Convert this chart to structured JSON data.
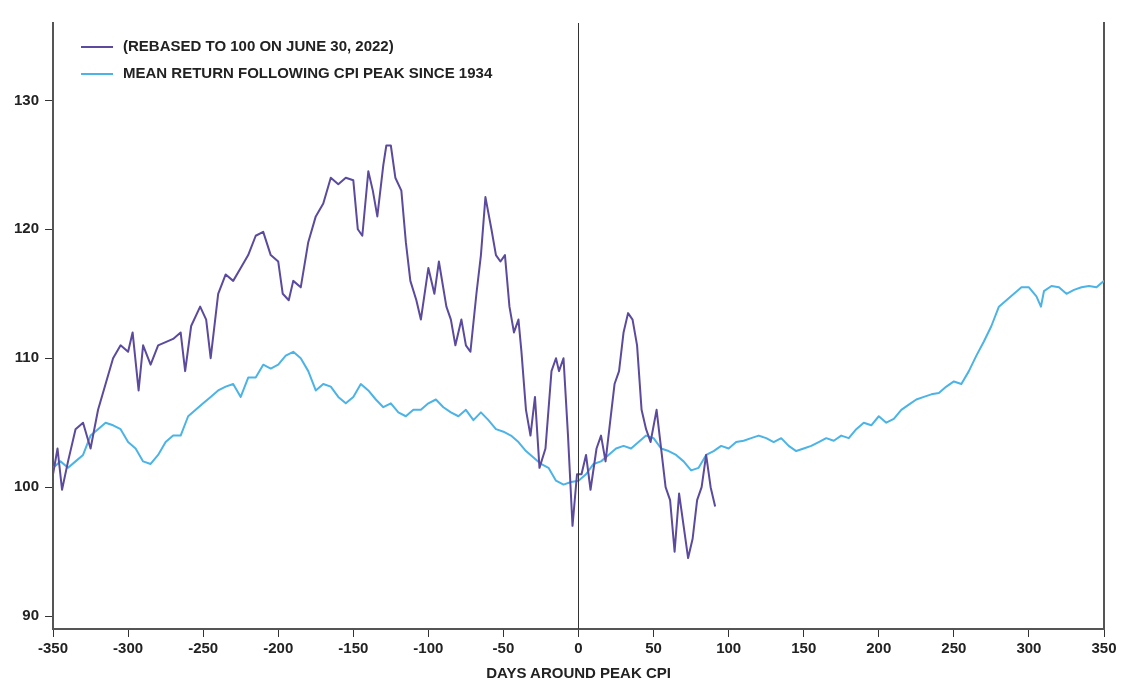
{
  "chart_data": {
    "type": "line",
    "xlabel": "DAYS AROUND PEAK CPI",
    "xlim": [
      -350,
      350
    ],
    "xticks": [
      -350,
      -300,
      -250,
      -200,
      -150,
      -100,
      -50,
      0,
      50,
      100,
      150,
      200,
      250,
      300,
      350
    ],
    "ylim": [
      89,
      136
    ],
    "yticks": [
      90,
      100,
      110,
      120,
      130
    ],
    "grid": false,
    "legend": "top left",
    "marker": "none",
    "line_style": "solid",
    "ref_lines": [
      {
        "axis": "x",
        "value": 0,
        "color": "#333333"
      }
    ],
    "series": [
      {
        "name": "(REBASED TO 100 ON JUNE 30, 2022)",
        "color": "#5b4a9e",
        "x": [
          -350,
          -347,
          -344,
          -340,
          -335,
          -330,
          -325,
          -320,
          -315,
          -310,
          -305,
          -300,
          -297,
          -293,
          -290,
          -285,
          -280,
          -270,
          -265,
          -262,
          -258,
          -252,
          -248,
          -245,
          -240,
          -235,
          -230,
          -225,
          -220,
          -215,
          -210,
          -205,
          -200,
          -197,
          -193,
          -190,
          -185,
          -180,
          -175,
          -170,
          -165,
          -160,
          -155,
          -150,
          -147,
          -144,
          -140,
          -137,
          -134,
          -130,
          -128,
          -125,
          -122,
          -118,
          -115,
          -112,
          -108,
          -105,
          -100,
          -96,
          -93,
          -88,
          -85,
          -82,
          -78,
          -75,
          -72,
          -68,
          -65,
          -62,
          -58,
          -55,
          -52,
          -49,
          -46,
          -43,
          -40,
          -38,
          -35,
          -32,
          -29,
          -26,
          -22,
          -18,
          -15,
          -13,
          -10,
          -7,
          -4,
          -1,
          2,
          5,
          8,
          12,
          15,
          18,
          21,
          24,
          27,
          30,
          33,
          36,
          39,
          42,
          45,
          48,
          52,
          55,
          58,
          61,
          64,
          67,
          70,
          73,
          76,
          79,
          82,
          85,
          88,
          91
        ],
        "values": [
          101,
          103,
          99.8,
          102,
          104.5,
          105,
          103,
          106,
          108,
          110,
          111,
          110.5,
          112,
          107.5,
          111,
          109.5,
          111,
          111.5,
          112,
          109,
          112.5,
          114,
          113,
          110,
          115,
          116.5,
          116,
          117,
          118,
          119.5,
          119.8,
          118,
          117.5,
          115,
          114.5,
          116,
          115.5,
          119,
          121,
          122,
          124,
          123.5,
          124,
          123.8,
          120,
          119.5,
          124.5,
          123,
          121,
          125,
          126.5,
          126.5,
          124,
          123,
          119,
          116,
          114.5,
          113,
          117,
          115,
          117.5,
          114,
          113,
          111,
          113,
          111,
          110.5,
          115,
          118,
          122.5,
          120,
          118,
          117.5,
          118,
          114,
          112,
          113,
          110.5,
          106,
          104,
          107,
          101.5,
          103,
          109,
          110,
          109,
          110,
          104,
          97,
          101,
          101,
          102.5,
          99.8,
          103,
          104,
          102,
          105,
          108,
          109,
          112,
          113.5,
          113,
          111,
          106,
          104.5,
          103.5,
          106,
          103,
          100,
          99,
          95,
          99.5,
          97,
          94.5,
          96,
          99,
          100,
          102.5,
          100,
          98.5
        ]
      },
      {
        "name": "MEAN RETURN FOLLOWING CPI PEAK SINCE 1934",
        "color": "#4bb3e6",
        "x": [
          -350,
          -345,
          -340,
          -335,
          -330,
          -325,
          -320,
          -315,
          -310,
          -305,
          -300,
          -295,
          -290,
          -285,
          -280,
          -275,
          -270,
          -265,
          -260,
          -255,
          -250,
          -245,
          -240,
          -235,
          -230,
          -225,
          -220,
          -215,
          -210,
          -205,
          -200,
          -195,
          -190,
          -185,
          -180,
          -175,
          -170,
          -165,
          -160,
          -155,
          -150,
          -145,
          -140,
          -135,
          -130,
          -125,
          -120,
          -115,
          -110,
          -105,
          -100,
          -95,
          -90,
          -85,
          -80,
          -75,
          -70,
          -65,
          -60,
          -55,
          -50,
          -45,
          -40,
          -35,
          -30,
          -25,
          -20,
          -15,
          -10,
          -5,
          0,
          5,
          10,
          15,
          20,
          25,
          30,
          35,
          40,
          45,
          50,
          55,
          60,
          65,
          70,
          75,
          80,
          85,
          90,
          95,
          100,
          105,
          110,
          115,
          120,
          125,
          130,
          135,
          140,
          145,
          150,
          155,
          160,
          165,
          170,
          175,
          180,
          185,
          190,
          195,
          200,
          205,
          210,
          215,
          220,
          225,
          230,
          235,
          240,
          245,
          250,
          255,
          260,
          265,
          270,
          275,
          280,
          285,
          290,
          295,
          300,
          305,
          308,
          310,
          315,
          320,
          325,
          330,
          335,
          340,
          345,
          350
        ],
        "values": [
          101.5,
          102,
          101.5,
          102,
          102.5,
          104,
          104.5,
          105,
          104.8,
          104.5,
          103.5,
          103,
          102,
          101.8,
          102.5,
          103.5,
          104,
          104,
          105.5,
          106,
          106.5,
          107,
          107.5,
          107.8,
          108,
          107,
          108.5,
          108.5,
          109.5,
          109.2,
          109.5,
          110.2,
          110.5,
          110,
          109,
          107.5,
          108,
          107.8,
          107,
          106.5,
          107,
          108,
          107.5,
          106.8,
          106.2,
          106.5,
          105.8,
          105.5,
          106,
          106,
          106.5,
          106.8,
          106.2,
          105.8,
          105.5,
          106,
          105.2,
          105.8,
          105.2,
          104.5,
          104.3,
          104,
          103.5,
          102.8,
          102.3,
          101.8,
          101.5,
          100.5,
          100.2,
          100.4,
          100.5,
          101,
          101.8,
          102,
          102.5,
          103,
          103.2,
          103,
          103.5,
          104,
          103.8,
          103,
          102.8,
          102.5,
          102,
          101.3,
          101.5,
          102.5,
          102.8,
          103.2,
          103,
          103.5,
          103.6,
          103.8,
          104,
          103.8,
          103.5,
          103.8,
          103.2,
          102.8,
          103,
          103.2,
          103.5,
          103.8,
          103.6,
          104,
          103.8,
          104.5,
          105,
          104.8,
          105.5,
          105,
          105.3,
          106,
          106.4,
          106.8,
          107,
          107.2,
          107.3,
          107.8,
          108.2,
          108,
          109,
          110.2,
          111.3,
          112.5,
          114,
          114.5,
          115,
          115.5,
          115.5,
          114.8,
          114,
          115.2,
          115.6,
          115.5,
          115,
          115.3,
          115.5,
          115.6,
          115.5,
          116
        ]
      }
    ]
  }
}
